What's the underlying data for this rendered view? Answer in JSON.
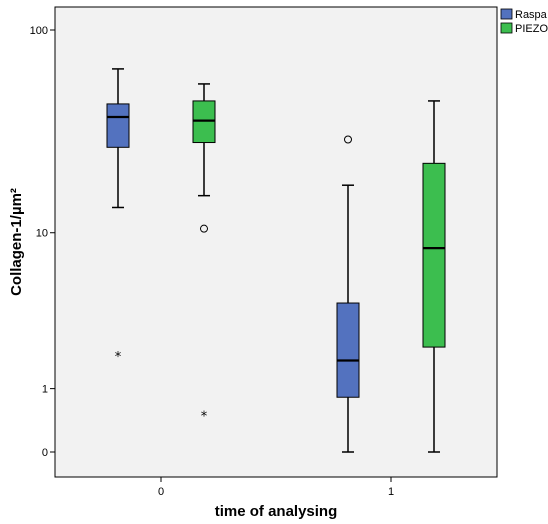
{
  "chart_data": {
    "type": "box",
    "xlabel": "time of analysing",
    "ylabel": "Collagen-1/µm²",
    "y_scale": "log-like (0 shown at bottom)",
    "yticks": [
      {
        "label": "100",
        "value": 100
      },
      {
        "label": "10",
        "value": 10
      },
      {
        "label": "1",
        "value": 1
      },
      {
        "label": "0",
        "value": 0
      }
    ],
    "categories": [
      "0",
      "1"
    ],
    "grid": false,
    "legend_position": "top-right",
    "series": [
      {
        "name": "Raspa",
        "color": "#5372bf",
        "boxes": [
          {
            "category": "0",
            "whisker_low": 13.5,
            "q1": 27,
            "median": 38,
            "q3": 44,
            "whisker_high": 65,
            "outliers": [
              {
                "value": 1.85,
                "marker": "extreme"
              }
            ]
          },
          {
            "category": "1",
            "whisker_low": 0,
            "q1": 0.82,
            "median": 1.72,
            "q3": 4.1,
            "whisker_high": 17.5,
            "outliers": [
              {
                "value": 29.5,
                "marker": "circle"
              }
            ]
          }
        ]
      },
      {
        "name": "PIEZO",
        "color": "#3cbe4f",
        "boxes": [
          {
            "category": "0",
            "whisker_low": 15.5,
            "q1": 28.5,
            "median": 36.5,
            "q3": 45.5,
            "whisker_high": 55,
            "outliers": [
              {
                "value": 10.5,
                "marker": "circle"
              },
              {
                "value": 0.49,
                "marker": "extreme"
              }
            ]
          },
          {
            "category": "1",
            "whisker_low": 0,
            "q1": 2.15,
            "median": 8.3,
            "q3": 22.5,
            "whisker_high": 45.5,
            "outliers": []
          }
        ]
      }
    ]
  }
}
